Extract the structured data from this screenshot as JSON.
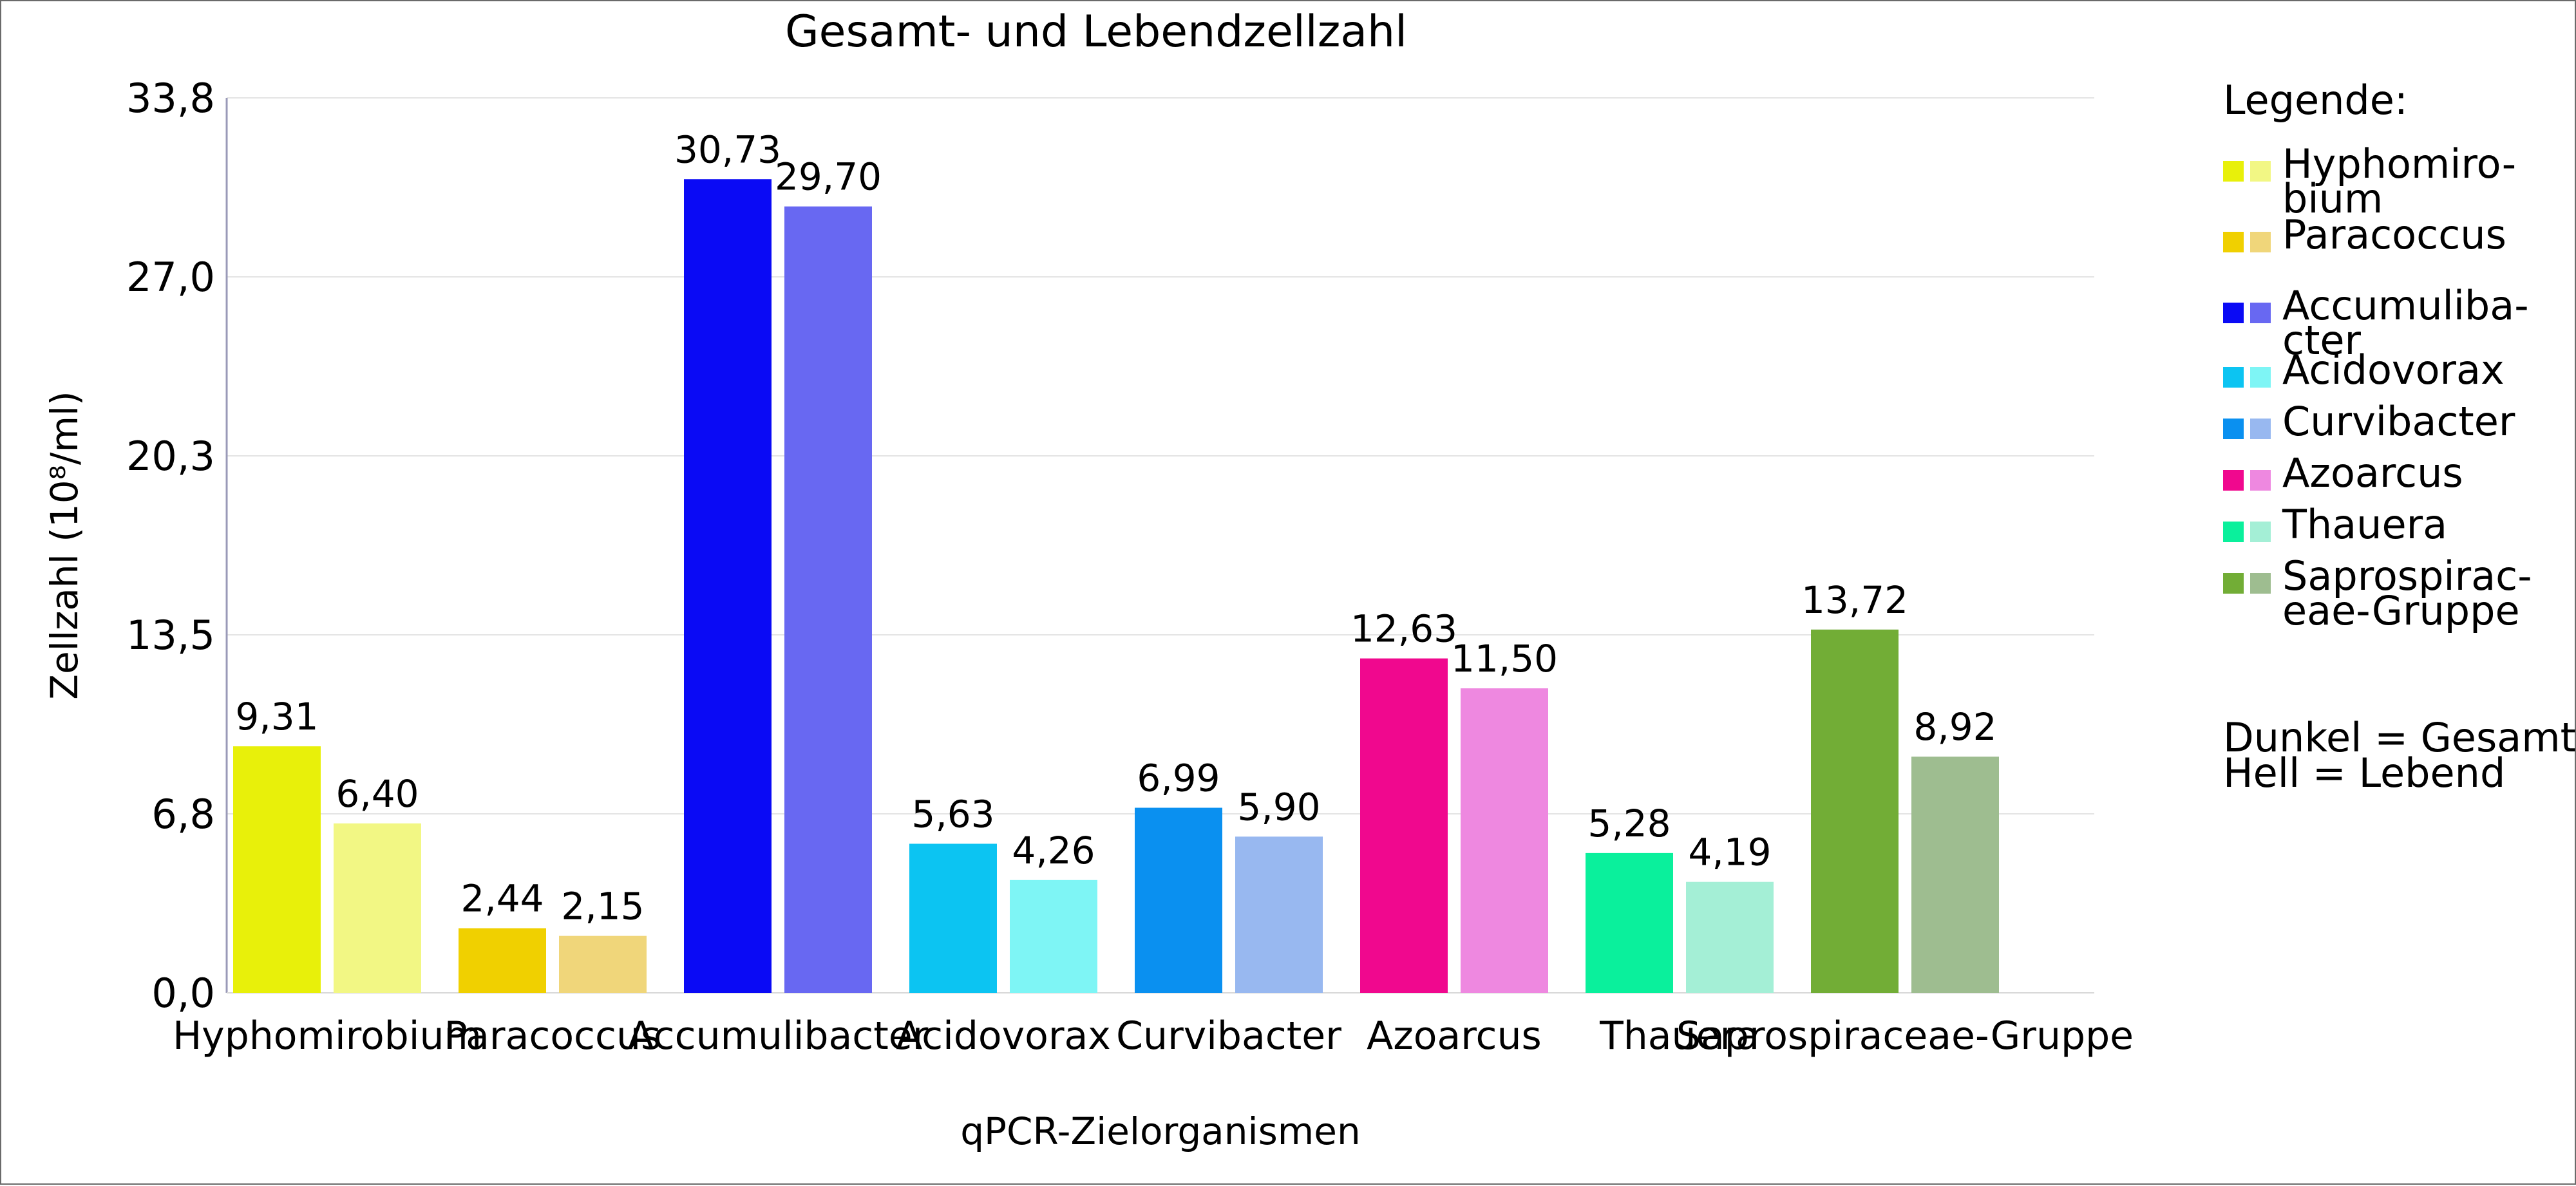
{
  "chart_data": {
    "type": "bar",
    "title": "Gesamt- und Lebendzellzahl",
    "xlabel": "qPCR-Zielorganismen",
    "ylabel": "Zellzahl (10⁸/ml)",
    "ylim": [
      0,
      33.8
    ],
    "yticks": [
      "0,0",
      "6,8",
      "13,5",
      "20,3",
      "27,0",
      "33,8"
    ],
    "ytick_values": [
      0,
      6.76,
      13.52,
      20.28,
      27.04,
      33.8
    ],
    "grid": true,
    "categories": [
      "Hyphomirobium",
      "Paracoccus",
      "Accumulibacter",
      "Acidovorax",
      "Curvibacter",
      "Azoarcus",
      "Thauera",
      "Saprospiraceae-Gruppe"
    ],
    "series": [
      {
        "name": "Gesamt",
        "values": [
          9.31,
          2.44,
          30.73,
          5.63,
          6.99,
          12.63,
          5.28,
          13.72
        ],
        "labels": [
          "9,31",
          "2,44",
          "30,73",
          "5,63",
          "6,99",
          "12,63",
          "5,28",
          "13,72"
        ],
        "colors": [
          "#e8f00a",
          "#f0d000",
          "#0a0af5",
          "#0cc4f2",
          "#0a90f0",
          "#f0088e",
          "#0af09c",
          "#72ad36"
        ]
      },
      {
        "name": "Lebend",
        "values": [
          6.4,
          2.15,
          29.7,
          4.26,
          5.9,
          11.5,
          4.19,
          8.92
        ],
        "labels": [
          "6,40",
          "2,15",
          "29,70",
          "4,26",
          "5,90",
          "11,50",
          "4,19",
          "8,92"
        ],
        "colors": [
          "#f2f784",
          "#f0d67a",
          "#6868f2",
          "#7ef5f5",
          "#98b8f0",
          "#ee88e0",
          "#a4efd6",
          "#9ebd90"
        ]
      }
    ],
    "legend": {
      "title": "Legende:",
      "placement": "right",
      "entries": [
        "Hyphomiro-\nbium",
        "Paracoccus",
        "Accumuliba-\ncter",
        "Acidovorax",
        "Curvibacter",
        "Azoarcus",
        "Thauera",
        "Saprospirac-\neae-Gruppe"
      ],
      "notes": [
        "Dunkel = Gesamt",
        "Hell = Lebend"
      ]
    }
  }
}
